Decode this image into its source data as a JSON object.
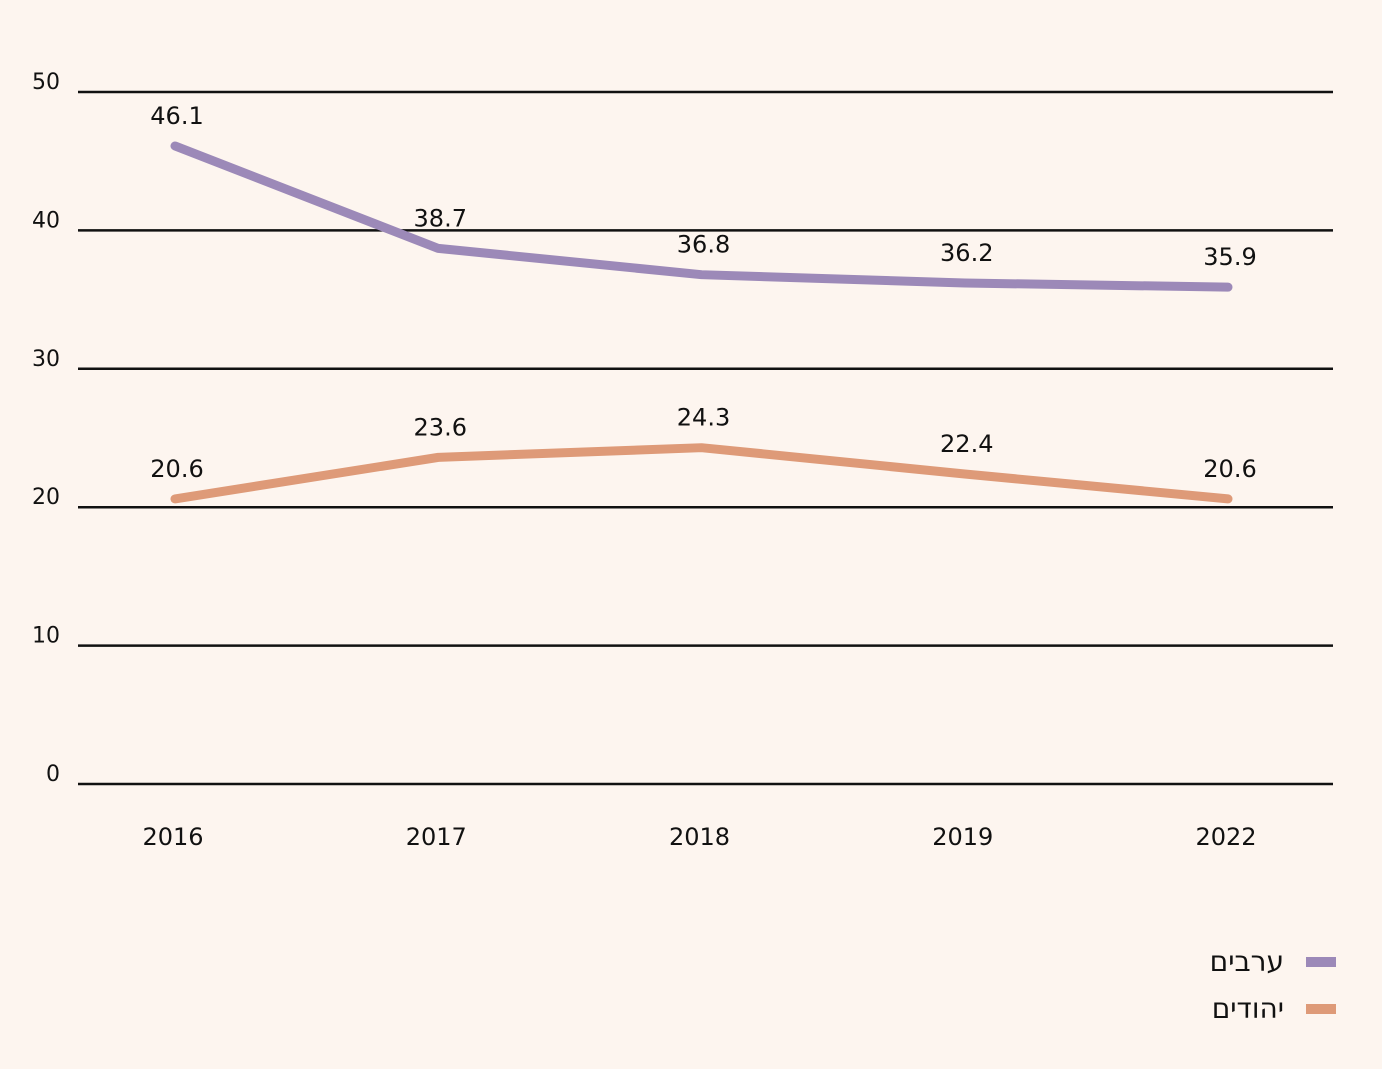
{
  "chart_data": {
    "type": "line",
    "categories": [
      "2016",
      "2017",
      "2018",
      "2019",
      "2022"
    ],
    "series": [
      {
        "name": "ערבים",
        "color": "#9c89b8",
        "values": [
          46.1,
          38.7,
          36.8,
          36.2,
          35.9
        ],
        "labels": [
          "46.1",
          "38.7",
          "36.8",
          "36.2",
          "35.9"
        ]
      },
      {
        "name": "יהודים",
        "color": "#de9a78",
        "values": [
          20.6,
          23.6,
          24.3,
          22.4,
          20.6
        ],
        "labels": [
          "20.6",
          "23.6",
          "24.3",
          "22.4",
          "20.6"
        ]
      }
    ],
    "y_ticks": [
      "0",
      "10",
      "20",
      "30",
      "40",
      "50"
    ],
    "ylim": [
      0,
      50
    ],
    "grid": true,
    "legend_position": "bottom-right",
    "title": "",
    "xlabel": "",
    "ylabel": ""
  }
}
